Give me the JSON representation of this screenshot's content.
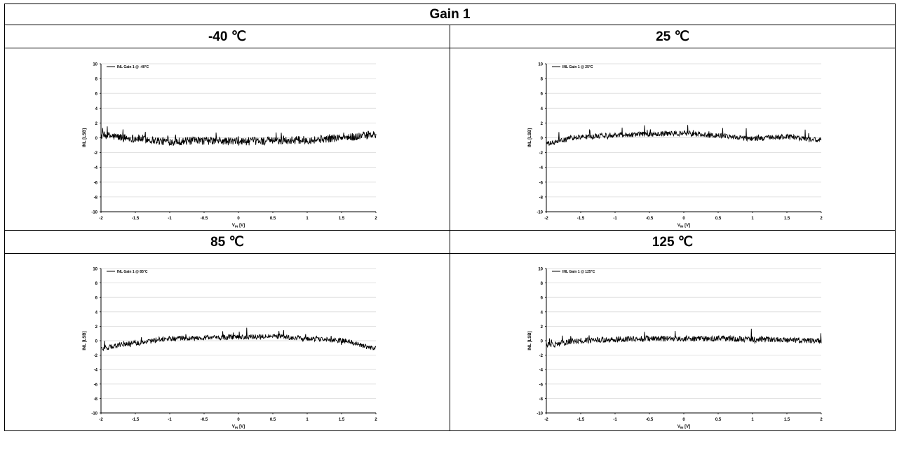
{
  "table": {
    "title": "Gain 1",
    "headers": [
      "-40 ℃",
      "25 ℃",
      "85 ℃",
      "125 ℃"
    ]
  },
  "chart_data": [
    {
      "type": "line",
      "series": [
        {
          "name": "INL Gain 1 @ -40°C",
          "x": [
            -2,
            -1.5,
            -1,
            -0.5,
            0,
            0.5,
            1,
            1.5,
            2
          ],
          "y": [
            0.3,
            -0.1,
            -0.5,
            -0.4,
            -0.5,
            -0.4,
            -0.3,
            0.0,
            0.4
          ]
        }
      ],
      "xlabel_main": "V",
      "xlabel_sub": "IN",
      "xlabel_unit": "[V]",
      "ylabel": "INL [LSB]",
      "xlim": [
        -2,
        2
      ],
      "ylim": [
        -10,
        10
      ],
      "xticks": [
        "-2",
        "-1.5",
        "-1",
        "-0.5",
        "0",
        "0.5",
        "1",
        "1.5",
        "2"
      ],
      "yticks": [
        "10",
        "8",
        "6",
        "4",
        "2",
        "0",
        "-2",
        "-4",
        "-6",
        "-8",
        "-10"
      ],
      "grid": true,
      "legend": "top-left",
      "noise_amplitude": 0.55
    },
    {
      "type": "line",
      "series": [
        {
          "name": "INL Gain 1 @ 25°C",
          "x": [
            -2,
            -1.5,
            -1,
            -0.5,
            0,
            0.5,
            1,
            1.5,
            2
          ],
          "y": [
            -0.8,
            0.1,
            0.4,
            0.5,
            0.6,
            0.3,
            -0.1,
            0.1,
            -0.3
          ]
        }
      ],
      "xlabel_main": "V",
      "xlabel_sub": "IN",
      "xlabel_unit": "[V]",
      "ylabel": "INL [LSB]",
      "xlim": [
        -2,
        2
      ],
      "ylim": [
        -10,
        10
      ],
      "xticks": [
        "-2",
        "-1.5",
        "-1",
        "-0.5",
        "0",
        "0.5",
        "1",
        "1.5",
        "2"
      ],
      "yticks": [
        "10",
        "8",
        "6",
        "4",
        "2",
        "0",
        "-2",
        "-4",
        "-6",
        "-8",
        "-10"
      ],
      "grid": true,
      "legend": "top-left",
      "noise_amplitude": 0.35
    },
    {
      "type": "line",
      "series": [
        {
          "name": "INL Gain 1 @ 85°C",
          "x": [
            -2,
            -1.5,
            -1,
            -0.5,
            0,
            0.5,
            1,
            1.5,
            2
          ],
          "y": [
            -1.0,
            -0.3,
            0.3,
            0.4,
            0.5,
            0.6,
            0.3,
            0.0,
            -1.0
          ]
        }
      ],
      "xlabel_main": "V",
      "xlabel_sub": "IN",
      "xlabel_unit": "[V]",
      "ylabel": "INL [LSB]",
      "xlim": [
        -2,
        2
      ],
      "ylim": [
        -10,
        10
      ],
      "xticks": [
        "-2",
        "-1.5",
        "-1",
        "-0.5",
        "0",
        "0.5",
        "1",
        "1.5",
        "2"
      ],
      "yticks": [
        "10",
        "8",
        "6",
        "4",
        "2",
        "0",
        "-2",
        "-4",
        "-6",
        "-8",
        "-10"
      ],
      "grid": true,
      "legend": "top-left",
      "noise_amplitude": 0.35
    },
    {
      "type": "line",
      "series": [
        {
          "name": "INL Gain 1 @ 125°C",
          "x": [
            -2,
            -1.5,
            -1,
            -0.5,
            0,
            0.5,
            1,
            1.5,
            2
          ],
          "y": [
            -0.6,
            0.0,
            0.2,
            0.3,
            0.3,
            0.3,
            0.2,
            0.1,
            0.0
          ]
        }
      ],
      "xlabel_main": "V",
      "xlabel_sub": "IN",
      "xlabel_unit": "[V]",
      "ylabel": "INL [LSB]",
      "xlim": [
        -2,
        2
      ],
      "ylim": [
        -10,
        10
      ],
      "xticks": [
        "-2",
        "-1.5",
        "-1",
        "-0.5",
        "0",
        "0.5",
        "1",
        "1.5",
        "2"
      ],
      "yticks": [
        "10",
        "8",
        "6",
        "4",
        "2",
        "0",
        "-2",
        "-4",
        "-6",
        "-8",
        "-10"
      ],
      "grid": true,
      "legend": "top-left",
      "noise_amplitude": 0.4
    }
  ],
  "colors": {
    "line": "#000000",
    "grid": "#d9d9d9",
    "border": "#000000"
  }
}
